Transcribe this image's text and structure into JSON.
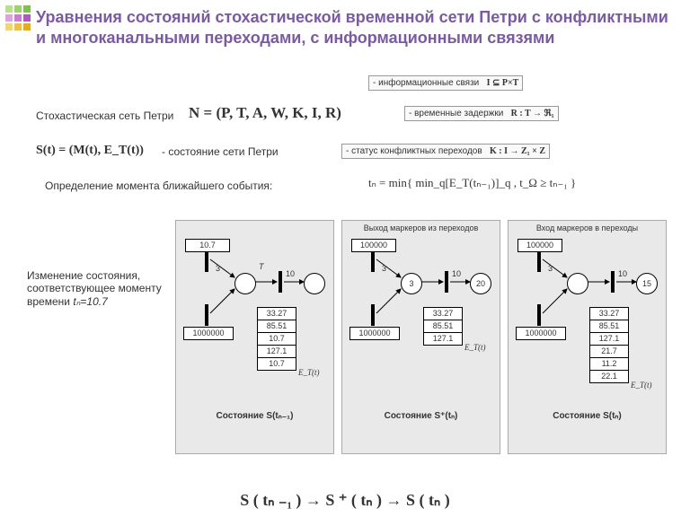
{
  "decor_colors": [
    "#b8e28a",
    "#9bd46a",
    "#7cc44a",
    "#e3a0e0",
    "#cc7cd0",
    "#b158c0",
    "#f7d56a",
    "#f0c23a",
    "#e8ae0a"
  ],
  "title_color": "#7a5aa8",
  "title": "Уравнения состояний стохастической временной сети Петри с конфликтными и многоканальными переходами, с информационными связями",
  "line1_left": "Стохастическая сеть Петри",
  "line1_formula": "N = (P, T, A, W, K, I, R)",
  "info_links": {
    "label": "- информационные связи",
    "formula": "I ⊆ P×T"
  },
  "time_delays": {
    "label": "- временные задержки",
    "formula": "R : T → ℜ₁"
  },
  "conflict_status": {
    "label": "- статус конфликтных переходов",
    "formula": "K : I → Z₁ × Z"
  },
  "state_formula_left": "S(t) = (M(t), E_T(t))",
  "state_formula_right": "- состояние сети Петри",
  "nearest_event_label": "Определение момента ближайшего события:",
  "nearest_event_formula": "tₙ = min{ min_q[E_T(tₙ₋₁)]_q , t_Ω ≥ tₙ₋₁ }",
  "side_text": "Изменение состояния, соответствующее моменту времени ",
  "side_text_sub": "tₙ=10.7",
  "panels": [
    {
      "header": "",
      "top_box": "10.7",
      "bottom_box": "1000000",
      "small_T": "T",
      "mid_small": "3",
      "right_num": "10",
      "center_value": "",
      "et_values": [
        "33.27",
        "85.51",
        "10.7",
        "127.1",
        "10.7"
      ],
      "et_label": "E_T(t)",
      "footer": "Состояние S(tₙ₋₁)"
    },
    {
      "header": "Выход маркеров из переходов",
      "top_box": "100000",
      "bottom_box": "1000000",
      "small_T": "",
      "mid_small": "3",
      "right_num": "10",
      "center_value": "3",
      "right_circle_value": "20",
      "et_values": [
        "33.27",
        "85.51",
        "127.1"
      ],
      "et_label": "E_T(t)",
      "footer": "Состояние S⁺(tₙ)"
    },
    {
      "header": "Вход маркеров в переходы",
      "top_box": "100000",
      "bottom_box": "1000000",
      "small_T": "",
      "mid_small": "3",
      "right_num": "10",
      "center_value": "",
      "right_circle_value": "15",
      "et_values": [
        "33.27",
        "85.51",
        "127.1",
        "21.7",
        "11.2",
        "22.1"
      ],
      "et_label": "E_T(t)",
      "footer": "Состояние S(tₙ)"
    }
  ],
  "bottom_eq": "S ( tₙ ₋₁ )   →   S ⁺ ( tₙ )   →   S ( tₙ )"
}
